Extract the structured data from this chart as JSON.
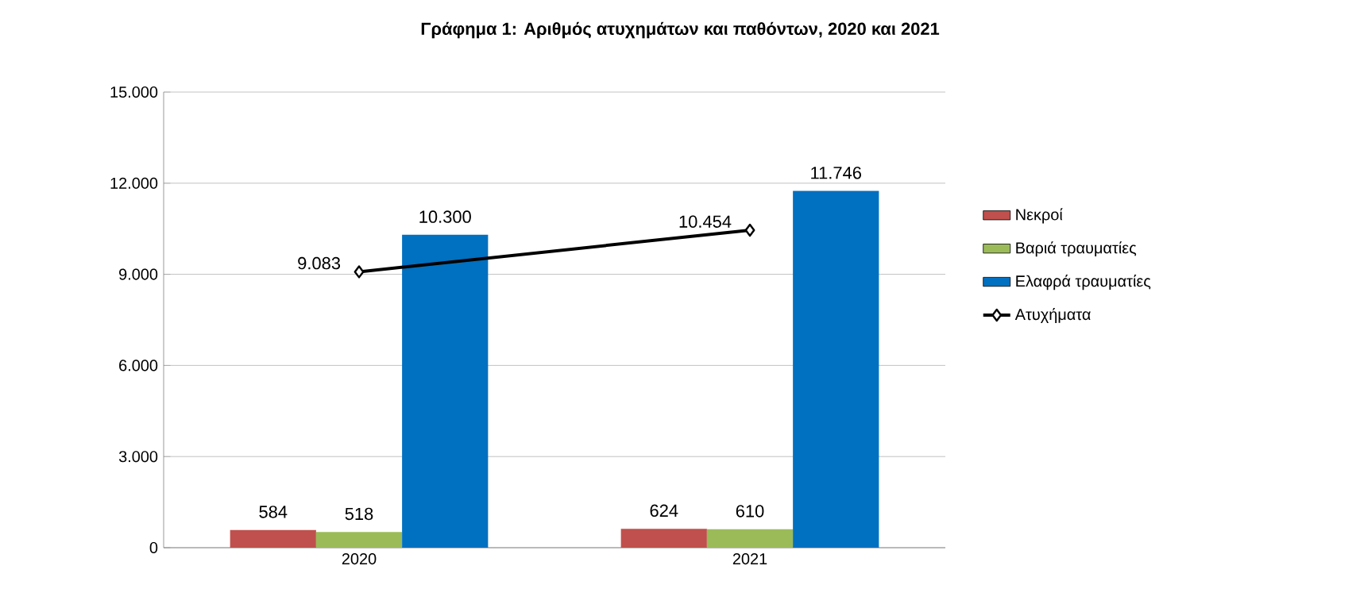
{
  "chart_data": {
    "type": "bar",
    "title": "Γράφημα 1: Αριθμός ατυχημάτων και παθόντων, 2020 και 2021",
    "categories": [
      "2020",
      "2021"
    ],
    "series": [
      {
        "name": "Νεκροί",
        "color": "#c0504d",
        "values": [
          584,
          624
        ],
        "value_labels": [
          "584",
          "624"
        ]
      },
      {
        "name": "Βαριά τραυματίες",
        "color": "#9bbb59",
        "values": [
          518,
          610
        ],
        "value_labels": [
          "518",
          "610"
        ]
      },
      {
        "name": "Ελαφρά τραυματίες",
        "color": "#0070c0",
        "values": [
          10300,
          11746
        ],
        "value_labels": [
          "10.300",
          "11.746"
        ]
      },
      {
        "name": "Ατυχήματα",
        "type": "line",
        "color": "#000000",
        "marker": "diamond",
        "values": [
          9083,
          10454
        ],
        "value_labels": [
          "9.083",
          "10.454"
        ]
      }
    ],
    "ylim": [
      0,
      15000
    ],
    "yticks": [
      {
        "value": 0,
        "label": "0"
      },
      {
        "value": 3000,
        "label": "3.000"
      },
      {
        "value": 6000,
        "label": "6.000"
      },
      {
        "value": 9000,
        "label": "9.000"
      },
      {
        "value": 12000,
        "label": "12.000"
      },
      {
        "value": 15000,
        "label": "15.000"
      }
    ],
    "grid": "y",
    "legend": "right"
  }
}
